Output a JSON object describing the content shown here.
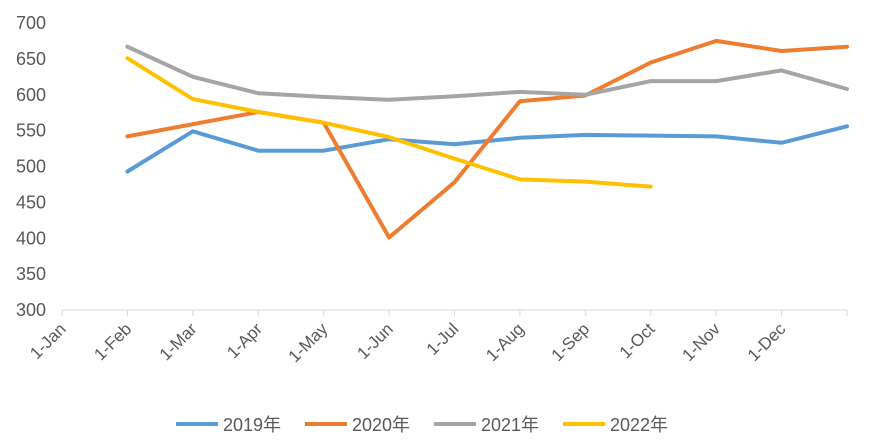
{
  "chart_data": {
    "type": "line",
    "title": "",
    "xlabel": "",
    "ylabel": "",
    "ylim": [
      300,
      700
    ],
    "ytick_step": 50,
    "grid": false,
    "legend_position": "bottom",
    "categories": [
      "1-Jan",
      "1-Feb",
      "1-Mar",
      "1-Apr",
      "1-May",
      "1-Jun",
      "1-Jul",
      "1-Aug",
      "1-Sep",
      "1-Oct",
      "1-Nov",
      "1-Dec",
      ""
    ],
    "series": [
      {
        "name": "2019年",
        "color": "#5B9BD5",
        "values": [
          null,
          493,
          549,
          522,
          522,
          538,
          531,
          540,
          544,
          543,
          542,
          533,
          556
        ]
      },
      {
        "name": "2020年",
        "color": "#ED7D31",
        "values": [
          null,
          542,
          559,
          576,
          561,
          401,
          478,
          591,
          599,
          645,
          675,
          661,
          667
        ]
      },
      {
        "name": "2021年",
        "color": "#A5A5A5",
        "values": [
          null,
          667,
          625,
          602,
          597,
          593,
          598,
          604,
          600,
          619,
          619,
          634,
          608
        ]
      },
      {
        "name": "2022年",
        "color": "#FFC000",
        "values": [
          null,
          651,
          594,
          576,
          561,
          541,
          511,
          482,
          479,
          472,
          null,
          null,
          null
        ]
      }
    ]
  }
}
